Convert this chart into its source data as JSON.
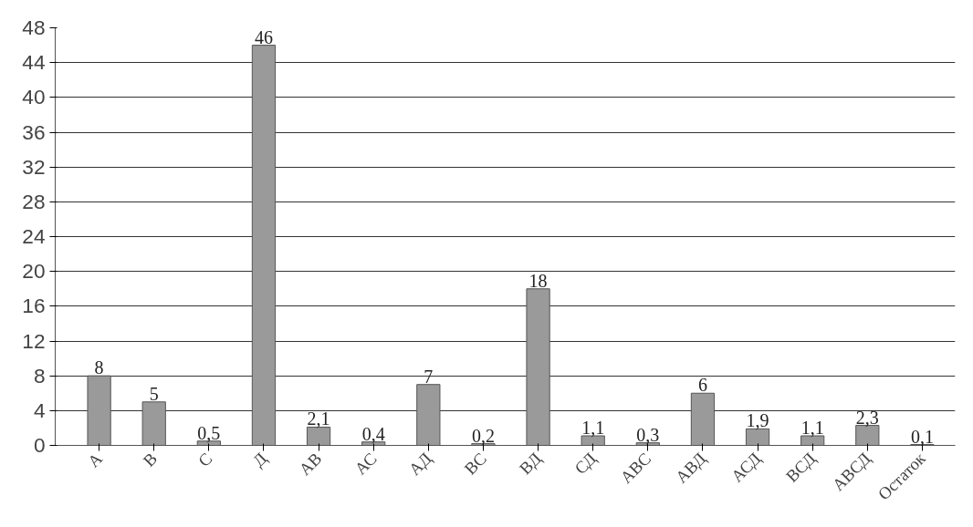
{
  "chart_data": {
    "type": "bar",
    "categories": [
      "А",
      "В",
      "С",
      "Д",
      "АВ",
      "АС",
      "АД",
      "ВС",
      "ВД",
      "СД",
      "АВС",
      "АВД",
      "АСД",
      "ВСД",
      "АВСД",
      "Остаток"
    ],
    "values": [
      8,
      5,
      0.5,
      46,
      2.1,
      0.4,
      7,
      0.2,
      18,
      1.1,
      0.3,
      6,
      1.9,
      1.1,
      2.3,
      0.1
    ],
    "value_labels": [
      "8",
      "5",
      "0,5",
      "46",
      "2,1",
      "0,4",
      "7",
      "0,2",
      "18",
      "1,1",
      "0,3",
      "6",
      "1,9",
      "1,1",
      "2,3",
      "0,1"
    ],
    "color": "#9a9a9a",
    "ylim": [
      0,
      48
    ],
    "yticks": [
      0,
      4,
      8,
      12,
      16,
      20,
      24,
      28,
      32,
      36,
      40,
      44,
      48
    ],
    "grid": "y"
  }
}
